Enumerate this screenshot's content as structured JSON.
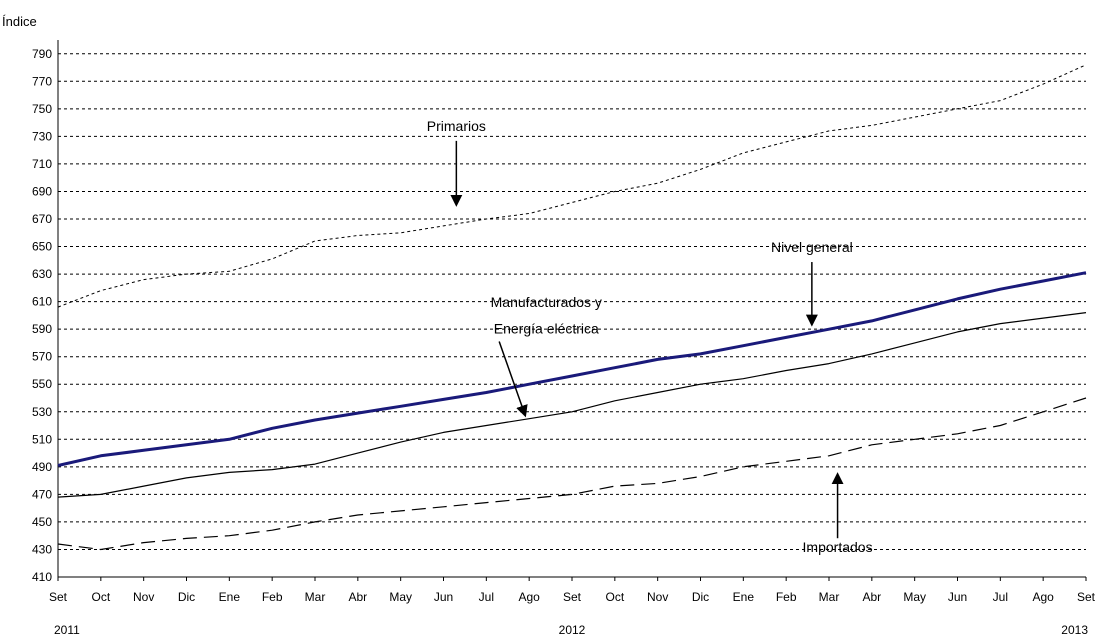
{
  "chart_data": {
    "type": "line",
    "ylabel": "Índice",
    "ylim": [
      410,
      800
    ],
    "yticks": [
      410,
      430,
      450,
      470,
      490,
      510,
      530,
      550,
      570,
      590,
      610,
      630,
      650,
      670,
      690,
      710,
      730,
      750,
      770,
      790
    ],
    "grid": "horizontal dashed",
    "categories": [
      "Set",
      "Oct",
      "Nov",
      "Dic",
      "Ene",
      "Feb",
      "Mar",
      "Abr",
      "May",
      "Jun",
      "Jul",
      "Ago",
      "Set",
      "Oct",
      "Nov",
      "Dic",
      "Ene",
      "Feb",
      "Mar",
      "Abr",
      "May",
      "Jun",
      "Jul",
      "Ago",
      "Set"
    ],
    "year_labels": [
      {
        "label": "2011",
        "index": 0
      },
      {
        "label": "2012",
        "index": 12
      },
      {
        "label": "2013",
        "index": 24
      }
    ],
    "series": [
      {
        "name": "Nivel general",
        "color": "#1a1a7a",
        "style": "bold",
        "values": [
          491,
          498,
          502,
          506,
          510,
          518,
          524,
          529,
          534,
          539,
          544,
          550,
          556,
          562,
          568,
          572,
          578,
          584,
          590,
          596,
          604,
          612,
          619,
          625,
          631
        ]
      },
      {
        "name": "Primarios",
        "color": "#000000",
        "style": "dotted",
        "values": [
          606,
          618,
          626,
          630,
          632,
          641,
          654,
          658,
          660,
          665,
          670,
          674,
          682,
          690,
          696,
          706,
          718,
          726,
          734,
          738,
          744,
          750,
          756,
          768,
          782
        ]
      },
      {
        "name": "Manufacturados y Energía eléctrica",
        "color": "#000000",
        "style": "solid",
        "values": [
          468,
          470,
          476,
          482,
          486,
          488,
          492,
          500,
          508,
          515,
          520,
          525,
          530,
          538,
          544,
          550,
          554,
          560,
          565,
          572,
          580,
          588,
          594,
          598,
          602
        ]
      },
      {
        "name": "Importados",
        "color": "#000000",
        "style": "dashed",
        "values": [
          434,
          430,
          435,
          438,
          440,
          444,
          450,
          455,
          458,
          461,
          464,
          467,
          470,
          476,
          478,
          483,
          490,
          494,
          498,
          506,
          510,
          514,
          520,
          530,
          540
        ]
      }
    ],
    "annotations": [
      {
        "text": "Primarios",
        "index": 9.3,
        "value": 734,
        "arrow_to": 681
      },
      {
        "text": "Nivel general",
        "index": 17.6,
        "value": 646,
        "arrow_to": 594
      },
      {
        "text": "Manufacturados y",
        "index": 11.4,
        "value": 606
      },
      {
        "text": "Energía eléctrica",
        "index": 11.4,
        "value": 587,
        "arrow_from": [
          10.3,
          581
        ],
        "arrow_to_point": [
          10.9,
          528
        ]
      },
      {
        "text": "Importados",
        "index": 18.2,
        "value": 428,
        "arrow_to": 484
      }
    ]
  }
}
